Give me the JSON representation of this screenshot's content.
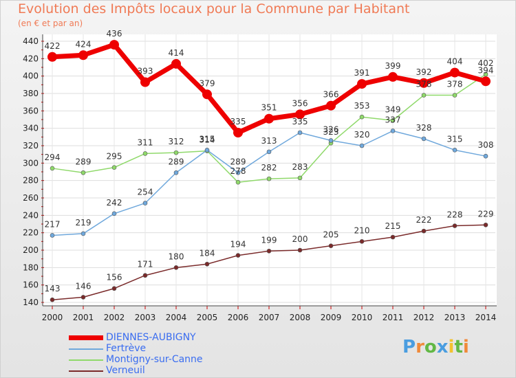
{
  "chart_data": {
    "type": "line",
    "title": "Evolution des Impôts locaux pour la Commune par Habitant",
    "subtitle": "(en € et par an)",
    "categories": [
      "2000",
      "2001",
      "2002",
      "2003",
      "2004",
      "2005",
      "2006",
      "2007",
      "2008",
      "2009",
      "2010",
      "2011",
      "2012",
      "2013",
      "2014"
    ],
    "ylim": [
      140,
      440
    ],
    "yticks": [
      140,
      160,
      180,
      200,
      220,
      240,
      260,
      280,
      300,
      320,
      340,
      360,
      380,
      400,
      420,
      440
    ],
    "grid": true,
    "legend_position": "bottom-left",
    "series": [
      {
        "name": "DIENNES-AUBIGNY",
        "color": "#ee0000",
        "width": 7,
        "marker": 7,
        "values": [
          422,
          424,
          436,
          393,
          414,
          379,
          335,
          351,
          356,
          366,
          391,
          399,
          392,
          404,
          394
        ]
      },
      {
        "name": "Fertrève",
        "color": "#6fa8dc",
        "width": 1.5,
        "marker": 3,
        "values": [
          217,
          219,
          242,
          254,
          289,
          315,
          289,
          313,
          335,
          326,
          320,
          337,
          328,
          315,
          308
        ]
      },
      {
        "name": "Montigny-sur-Canne",
        "color": "#8fd96a",
        "width": 1.5,
        "marker": 3,
        "values": [
          294,
          289,
          295,
          311,
          312,
          314,
          278,
          282,
          283,
          323,
          353,
          349,
          378,
          378,
          402
        ]
      },
      {
        "name": "Verneuil",
        "color": "#7a2a2a",
        "width": 1.5,
        "marker": 3,
        "values": [
          143,
          146,
          156,
          171,
          180,
          184,
          194,
          199,
          200,
          205,
          210,
          215,
          222,
          228,
          229
        ]
      }
    ]
  },
  "brand": {
    "letters": [
      {
        "ch": "P",
        "color": "#4a9de0"
      },
      {
        "ch": "r",
        "color": "#f08a3a"
      },
      {
        "ch": "o",
        "color": "#62b845"
      },
      {
        "ch": "x",
        "color": "#4a9de0"
      },
      {
        "ch": "i",
        "color": "#f2c230"
      },
      {
        "ch": "t",
        "color": "#62b845"
      },
      {
        "ch": "i",
        "color": "#f08a3a"
      }
    ]
  }
}
